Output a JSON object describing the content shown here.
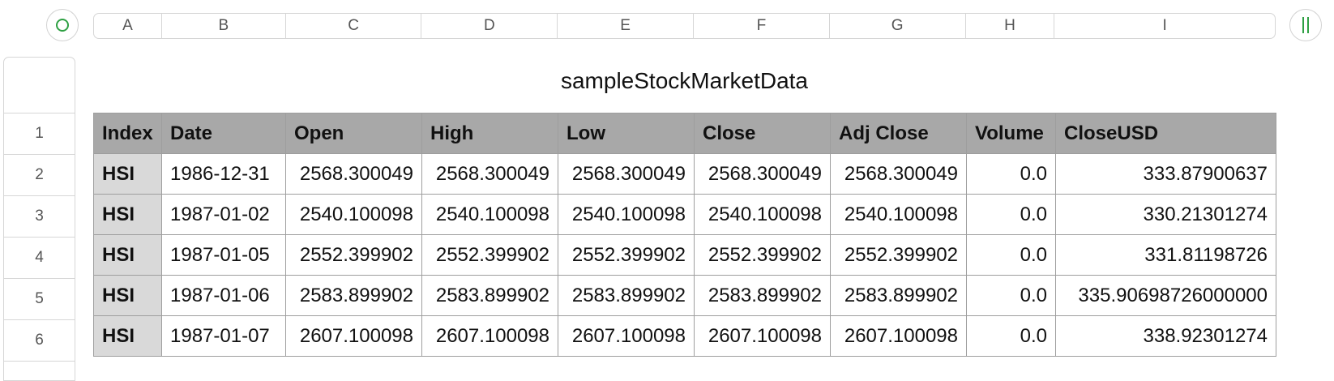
{
  "column_headers": [
    "A",
    "B",
    "C",
    "D",
    "E",
    "F",
    "G",
    "H",
    "I"
  ],
  "row_headers": [
    "1",
    "2",
    "3",
    "4",
    "5",
    "6"
  ],
  "table": {
    "title": "sampleStockMarketData",
    "headers": [
      "Index",
      "Date",
      "Open",
      "High",
      "Low",
      "Close",
      "Adj Close",
      "Volume",
      "CloseUSD"
    ],
    "rows": [
      [
        "HSI",
        "1986-12-31",
        "2568.300049",
        "2568.300049",
        "2568.300049",
        "2568.300049",
        "2568.300049",
        "0.0",
        "333.87900637"
      ],
      [
        "HSI",
        "1987-01-02",
        "2540.100098",
        "2540.100098",
        "2540.100098",
        "2540.100098",
        "2540.100098",
        "0.0",
        "330.21301274"
      ],
      [
        "HSI",
        "1987-01-05",
        "2552.399902",
        "2552.399902",
        "2552.399902",
        "2552.399902",
        "2552.399902",
        "0.0",
        "331.81198726"
      ],
      [
        "HSI",
        "1987-01-06",
        "2583.899902",
        "2583.899902",
        "2583.899902",
        "2583.899902",
        "2583.899902",
        "0.0",
        "335.90698726000000"
      ],
      [
        "HSI",
        "1987-01-07",
        "2607.100098",
        "2607.100098",
        "2607.100098",
        "2607.100098",
        "2607.100098",
        "0.0",
        "338.92301274"
      ]
    ]
  },
  "controls": {
    "select_all_icon": "circle-icon",
    "freeze_icon": "pause-bars-icon",
    "accent_color": "#2ea043"
  }
}
